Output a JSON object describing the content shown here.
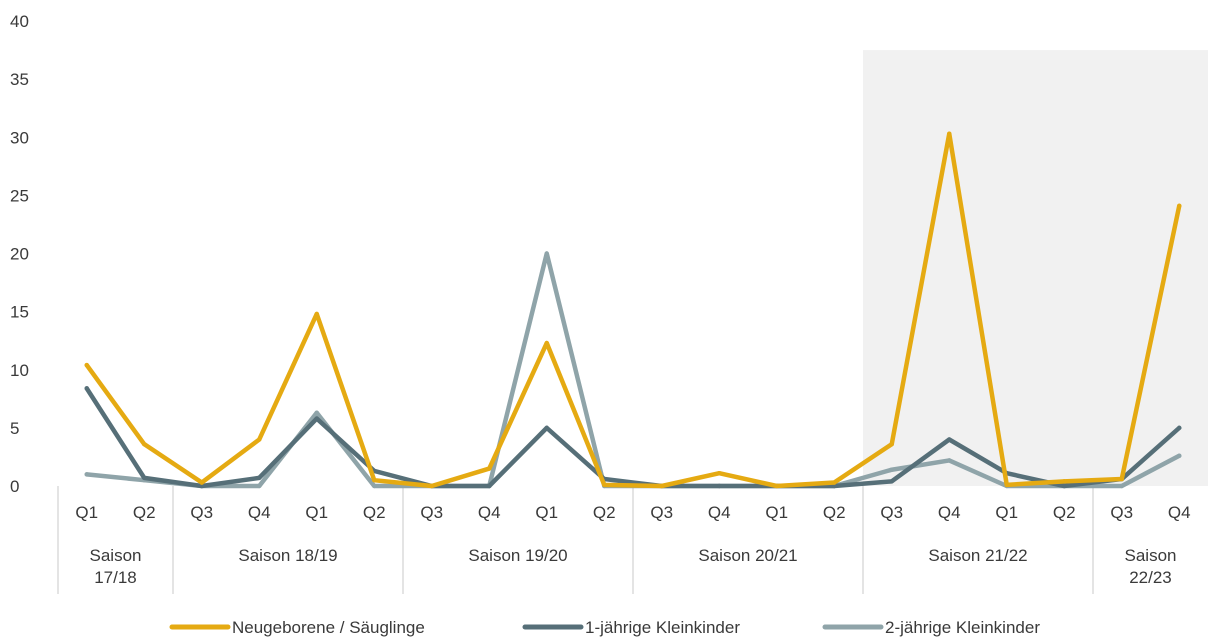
{
  "chart_data": {
    "type": "line",
    "ylim": [
      0,
      40
    ],
    "yticks": [
      0,
      5,
      10,
      15,
      20,
      25,
      30,
      35,
      40
    ],
    "categories": [
      "Q1",
      "Q2",
      "Q3",
      "Q4",
      "Q1",
      "Q2",
      "Q3",
      "Q4",
      "Q1",
      "Q2",
      "Q3",
      "Q4",
      "Q1",
      "Q2",
      "Q3",
      "Q4",
      "Q1",
      "Q2",
      "Q3",
      "Q4"
    ],
    "season_groups": [
      {
        "label_lines": [
          "Saison",
          "17/18"
        ],
        "start": 0,
        "end": 1
      },
      {
        "label_lines": [
          "Saison 18/19"
        ],
        "start": 2,
        "end": 5
      },
      {
        "label_lines": [
          "Saison 19/20"
        ],
        "start": 6,
        "end": 9
      },
      {
        "label_lines": [
          "Saison 20/21"
        ],
        "start": 10,
        "end": 13
      },
      {
        "label_lines": [
          "Saison 21/22"
        ],
        "start": 14,
        "end": 17
      },
      {
        "label_lines": [
          "Saison",
          "22/23"
        ],
        "start": 18,
        "end": 19
      }
    ],
    "highlight_range": [
      14,
      19
    ],
    "grid": false,
    "legend_position": "bottom",
    "series": [
      {
        "name": "Neugeborene / Säuglinge",
        "color": "#E5AA12",
        "values": [
          10.4,
          3.6,
          0.3,
          4.0,
          14.8,
          0.5,
          0,
          1.5,
          12.3,
          0.1,
          0,
          1.1,
          0,
          0.3,
          3.6,
          30.3,
          0.1,
          0.4,
          0.6,
          24.1
        ]
      },
      {
        "name": "1-jährige Kleinkinder",
        "color": "#566F78",
        "values": [
          8.4,
          0.7,
          0,
          0.7,
          5.8,
          1.3,
          0,
          0,
          5.0,
          0.6,
          0,
          0,
          0,
          0,
          0.4,
          4.0,
          1.1,
          0,
          0.6,
          5.0
        ]
      },
      {
        "name": "2-jährige Kleinkinder",
        "color": "#8FA4A9",
        "values": [
          1.0,
          0.5,
          0,
          0,
          6.3,
          0,
          0,
          0,
          20.0,
          0,
          0,
          0,
          0,
          0,
          1.4,
          2.2,
          0,
          0,
          0,
          2.6
        ]
      }
    ]
  }
}
